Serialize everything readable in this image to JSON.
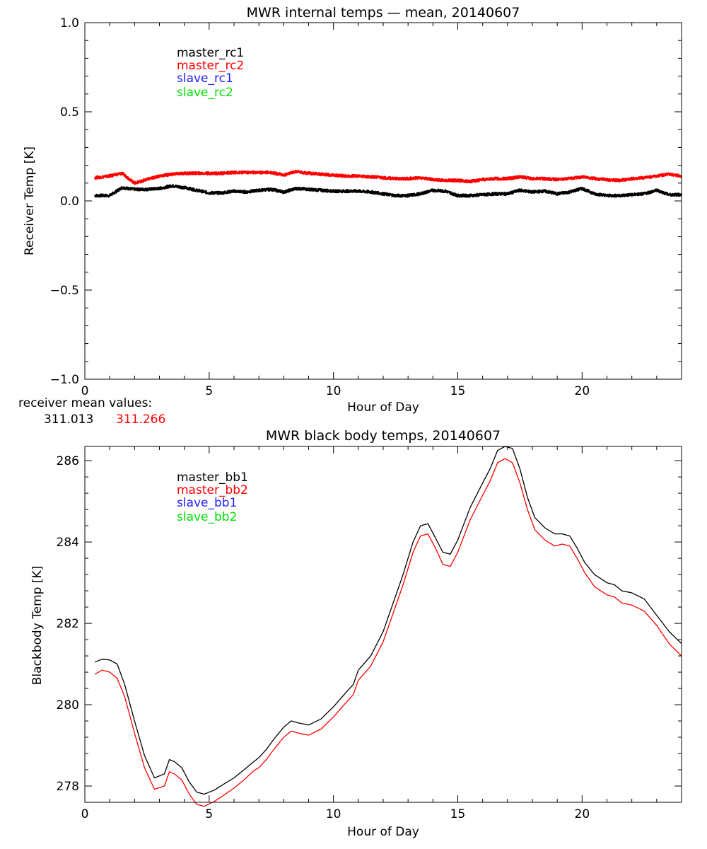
{
  "colors": {
    "black": "#000000",
    "red": "#ff0000",
    "blue": "#2020ff",
    "green": "#00e000"
  },
  "chart_data": [
    {
      "type": "line",
      "title": "MWR internal temps — mean, 20140607",
      "xlabel": "Hour of Day",
      "ylabel": "Receiver Temp [K]",
      "xlim": [
        0,
        24
      ],
      "ylim": [
        -1.0,
        1.0
      ],
      "xticks": [
        0,
        5,
        10,
        15,
        20
      ],
      "yticks": [
        -1.0,
        -0.5,
        0.0,
        0.5,
        1.0
      ],
      "ytick_labels": [
        "−1.0",
        "−0.5",
        "0.0",
        "0.5",
        "1.0"
      ],
      "legend": [
        {
          "name": "master_rc1",
          "color": "#000000"
        },
        {
          "name": "master_rc2",
          "color": "#ff0000"
        },
        {
          "name": "slave_rc1",
          "color": "#2020ff"
        },
        {
          "name": "slave_rc2",
          "color": "#00e000"
        }
      ],
      "legend_placement": "top-left",
      "series": [
        {
          "name": "master_rc1",
          "color": "#000000",
          "x": [
            0.4,
            1.0,
            1.5,
            2.0,
            2.5,
            3.0,
            3.5,
            4.0,
            4.5,
            5.0,
            5.5,
            6.0,
            6.5,
            7.0,
            7.5,
            8.0,
            8.5,
            9.0,
            9.5,
            10.0,
            10.5,
            11.0,
            11.5,
            12.0,
            12.5,
            13.0,
            13.5,
            14.0,
            14.5,
            15.0,
            15.5,
            16.0,
            16.5,
            17.0,
            17.5,
            18.0,
            18.5,
            19.0,
            19.5,
            20.0,
            20.5,
            21.0,
            21.5,
            22.0,
            22.5,
            23.0,
            23.5,
            24.0
          ],
          "y": [
            0.03,
            0.03,
            0.075,
            0.065,
            0.065,
            0.07,
            0.085,
            0.075,
            0.06,
            0.045,
            0.045,
            0.055,
            0.05,
            0.06,
            0.065,
            0.05,
            0.07,
            0.065,
            0.06,
            0.055,
            0.055,
            0.055,
            0.05,
            0.04,
            0.03,
            0.03,
            0.04,
            0.06,
            0.055,
            0.03,
            0.03,
            0.035,
            0.04,
            0.04,
            0.06,
            0.05,
            0.055,
            0.04,
            0.05,
            0.07,
            0.04,
            0.03,
            0.03,
            0.035,
            0.04,
            0.06,
            0.035,
            0.035
          ]
        },
        {
          "name": "master_rc2",
          "color": "#ff0000",
          "x": [
            0.4,
            1.0,
            1.5,
            2.0,
            2.5,
            3.0,
            3.5,
            4.0,
            4.5,
            5.0,
            5.5,
            6.0,
            6.5,
            7.0,
            7.5,
            8.0,
            8.5,
            9.0,
            9.5,
            10.0,
            10.5,
            11.0,
            11.5,
            12.0,
            12.5,
            13.0,
            13.5,
            14.0,
            14.5,
            15.0,
            15.5,
            16.0,
            16.5,
            17.0,
            17.5,
            18.0,
            18.5,
            19.0,
            19.5,
            20.0,
            20.5,
            21.0,
            21.5,
            22.0,
            22.5,
            23.0,
            23.5,
            24.0
          ],
          "y": [
            0.13,
            0.14,
            0.155,
            0.1,
            0.12,
            0.14,
            0.15,
            0.155,
            0.155,
            0.155,
            0.155,
            0.16,
            0.16,
            0.16,
            0.16,
            0.145,
            0.165,
            0.155,
            0.15,
            0.145,
            0.14,
            0.14,
            0.135,
            0.13,
            0.125,
            0.125,
            0.13,
            0.12,
            0.115,
            0.115,
            0.11,
            0.12,
            0.125,
            0.125,
            0.135,
            0.125,
            0.125,
            0.12,
            0.125,
            0.135,
            0.125,
            0.12,
            0.115,
            0.125,
            0.13,
            0.14,
            0.15,
            0.14
          ]
        }
      ],
      "annotation": {
        "label": "receiver mean values:",
        "values": [
          "311.013",
          "311.266"
        ]
      }
    },
    {
      "type": "line",
      "title": "MWR black body temps, 20140607",
      "xlabel": "Hour of Day",
      "ylabel": "Blackbody Temp [K]",
      "xlim": [
        0,
        24
      ],
      "ylim": [
        277.6,
        286.35
      ],
      "xticks": [
        0,
        5,
        10,
        15,
        20
      ],
      "yticks": [
        278,
        280,
        282,
        284,
        286
      ],
      "ytick_labels": [
        "278",
        "280",
        "282",
        "284",
        "286"
      ],
      "legend": [
        {
          "name": "master_bb1",
          "color": "#000000"
        },
        {
          "name": "master_bb2",
          "color": "#ff0000"
        },
        {
          "name": "slave_bb1",
          "color": "#2020ff"
        },
        {
          "name": "slave_bb2",
          "color": "#00e000"
        }
      ],
      "legend_placement": "top-left",
      "series": [
        {
          "name": "master_bb1",
          "color": "#000000",
          "x": [
            0.4,
            0.7,
            1.0,
            1.3,
            1.6,
            2.0,
            2.4,
            2.8,
            3.2,
            3.4,
            3.6,
            3.9,
            4.2,
            4.5,
            4.8,
            5.2,
            5.6,
            6.0,
            6.4,
            6.8,
            7.0,
            7.3,
            7.6,
            8.0,
            8.3,
            8.6,
            9.0,
            9.5,
            10.0,
            10.5,
            10.8,
            11.0,
            11.5,
            12.0,
            12.4,
            12.8,
            13.2,
            13.5,
            13.8,
            14.1,
            14.4,
            14.7,
            15.0,
            15.5,
            16.0,
            16.3,
            16.6,
            16.9,
            17.2,
            17.5,
            17.8,
            18.1,
            18.5,
            18.9,
            19.2,
            19.5,
            19.8,
            20.1,
            20.5,
            21.0,
            21.3,
            21.6,
            22.0,
            22.5,
            23.0,
            23.5,
            24.0
          ],
          "y": [
            281.05,
            281.12,
            281.1,
            281.0,
            280.5,
            279.6,
            278.75,
            278.2,
            278.3,
            278.65,
            278.6,
            278.45,
            278.1,
            277.85,
            277.8,
            277.9,
            278.05,
            278.2,
            278.4,
            278.6,
            278.7,
            278.9,
            279.15,
            279.45,
            279.6,
            279.55,
            279.5,
            279.65,
            279.95,
            280.3,
            280.5,
            280.85,
            281.2,
            281.8,
            282.5,
            283.2,
            284.0,
            284.4,
            284.45,
            284.1,
            283.75,
            283.7,
            284.05,
            284.85,
            285.45,
            285.8,
            286.25,
            286.35,
            286.3,
            285.8,
            285.1,
            284.6,
            284.35,
            284.2,
            284.2,
            284.15,
            283.85,
            283.5,
            283.2,
            283.0,
            282.95,
            282.8,
            282.75,
            282.6,
            282.2,
            281.8,
            281.5
          ]
        },
        {
          "name": "master_bb2",
          "color": "#ff0000",
          "x": [
            0.4,
            0.7,
            1.0,
            1.3,
            1.6,
            2.0,
            2.4,
            2.8,
            3.2,
            3.4,
            3.6,
            3.9,
            4.2,
            4.5,
            4.8,
            5.2,
            5.6,
            6.0,
            6.4,
            6.8,
            7.0,
            7.3,
            7.6,
            8.0,
            8.3,
            8.6,
            9.0,
            9.5,
            10.0,
            10.5,
            10.8,
            11.0,
            11.5,
            12.0,
            12.4,
            12.8,
            13.2,
            13.5,
            13.8,
            14.1,
            14.4,
            14.7,
            15.0,
            15.5,
            16.0,
            16.3,
            16.6,
            16.9,
            17.2,
            17.5,
            17.8,
            18.1,
            18.5,
            18.9,
            19.2,
            19.5,
            19.8,
            20.1,
            20.5,
            21.0,
            21.3,
            21.6,
            22.0,
            22.5,
            23.0,
            23.5,
            24.0
          ],
          "y": [
            280.75,
            280.85,
            280.8,
            280.65,
            280.2,
            279.3,
            278.45,
            277.92,
            278.0,
            278.35,
            278.3,
            278.15,
            277.8,
            277.55,
            277.5,
            277.62,
            277.78,
            277.95,
            278.15,
            278.38,
            278.45,
            278.65,
            278.9,
            279.2,
            279.35,
            279.3,
            279.25,
            279.4,
            279.7,
            280.05,
            280.25,
            280.6,
            280.95,
            281.55,
            282.25,
            282.95,
            283.75,
            284.15,
            284.2,
            283.85,
            283.45,
            283.4,
            283.75,
            284.55,
            285.15,
            285.5,
            285.95,
            286.05,
            285.95,
            285.45,
            284.8,
            284.3,
            284.05,
            283.9,
            283.95,
            283.9,
            283.6,
            283.25,
            282.9,
            282.7,
            282.65,
            282.5,
            282.45,
            282.3,
            281.95,
            281.5,
            281.2
          ]
        }
      ]
    }
  ]
}
